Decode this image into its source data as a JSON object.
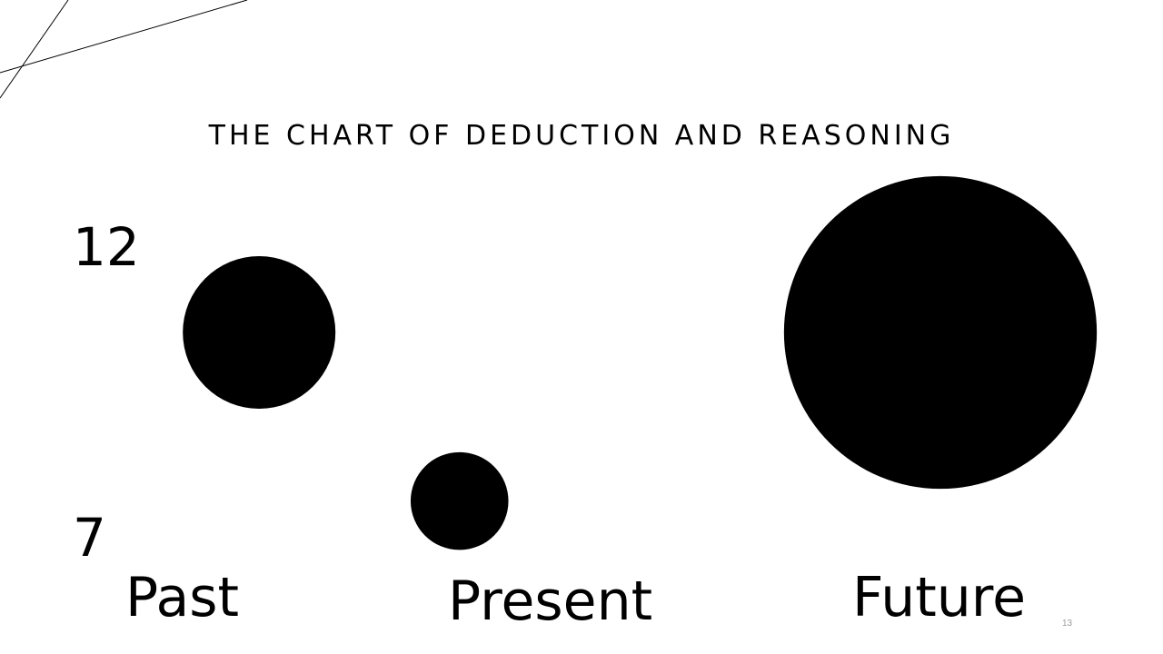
{
  "slide": {
    "title": "THE CHART OF DEDUCTION AND REASONING",
    "page_number": "13"
  },
  "chart_data": {
    "type": "scatter",
    "title": "THE CHART OF DEDUCTION AND REASONING",
    "y_tick_labels": [
      "12",
      "7"
    ],
    "x_tick_labels": [
      "Past",
      "Present",
      "Future"
    ],
    "ylim": [
      7,
      12
    ],
    "points": [
      {
        "x": 0.2,
        "y": 10.5,
        "size": 1.0
      },
      {
        "x": 0.75,
        "y": 7.6,
        "size": 0.41
      },
      {
        "x": 2.0,
        "y": 10.5,
        "size": 4.2
      }
    ],
    "marker_color": "#000000",
    "grid": false,
    "legend": false
  }
}
